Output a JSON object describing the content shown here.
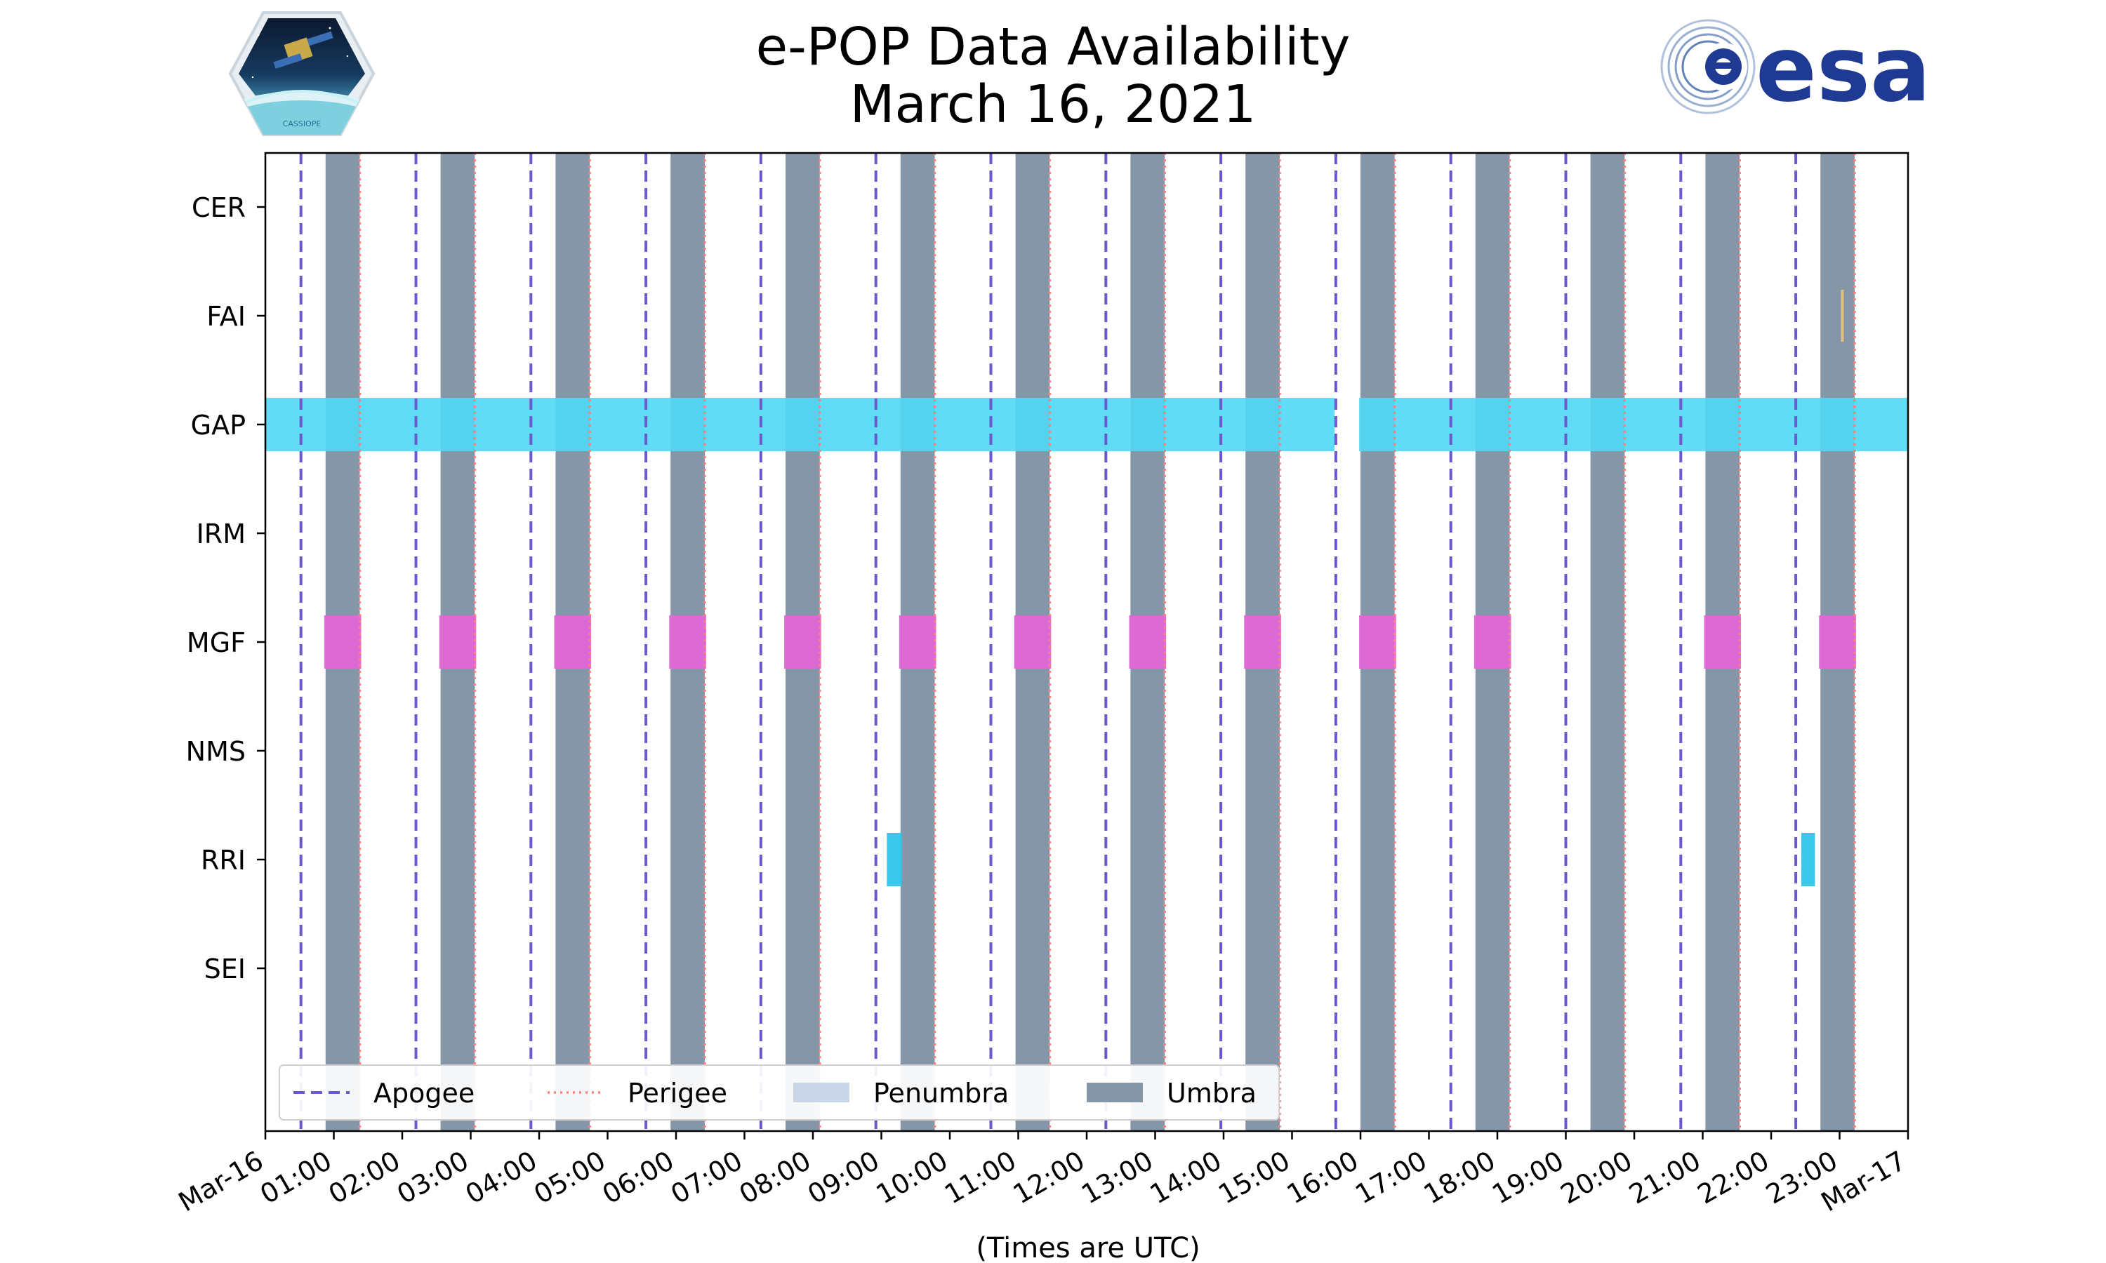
{
  "chart_data": {
    "type": "timeline",
    "title": "e-POP Data Availability",
    "subtitle": "March 16, 2021",
    "xlabel": "(Times are UTC)",
    "ylabel": "",
    "x_range_hours": [
      0,
      24
    ],
    "x_tick_labels": [
      "Mar-16",
      "01:00",
      "02:00",
      "03:00",
      "04:00",
      "05:00",
      "06:00",
      "07:00",
      "08:00",
      "09:00",
      "10:00",
      "11:00",
      "12:00",
      "13:00",
      "14:00",
      "15:00",
      "16:00",
      "17:00",
      "18:00",
      "19:00",
      "20:00",
      "21:00",
      "22:00",
      "23:00",
      "Mar-17"
    ],
    "instruments": [
      "CER",
      "FAI",
      "GAP",
      "IRM",
      "MGF",
      "NMS",
      "RRI",
      "SEI"
    ],
    "colors": {
      "apogee": "#6a5acd",
      "perigee": "#ff7f7f",
      "penumbra": "#c8d6e8",
      "umbra": "#8596a8",
      "GAP": "#4fd8f5",
      "MGF": "#e066d6",
      "RRI": "#2ec5e8",
      "FAI": "#e8c07a"
    },
    "apogee_hours": [
      0.52,
      2.2,
      3.88,
      5.56,
      7.24,
      8.92,
      10.6,
      12.28,
      13.96,
      15.64,
      17.32,
      19.0,
      20.68,
      22.36
    ],
    "perigee_hours": [
      1.38,
      3.06,
      4.74,
      6.42,
      8.1,
      9.78,
      11.46,
      13.14,
      14.82,
      16.5,
      18.18,
      19.86,
      21.54,
      23.22
    ],
    "umbra_intervals": [
      [
        0.88,
        1.38
      ],
      [
        2.56,
        3.06
      ],
      [
        4.24,
        4.74
      ],
      [
        5.92,
        6.42
      ],
      [
        7.6,
        8.1
      ],
      [
        9.28,
        9.78
      ],
      [
        10.96,
        11.46
      ],
      [
        12.64,
        13.14
      ],
      [
        14.32,
        14.82
      ],
      [
        16.0,
        16.5
      ],
      [
        17.68,
        18.18
      ],
      [
        19.36,
        19.86
      ],
      [
        21.04,
        21.54
      ],
      [
        22.72,
        23.22
      ]
    ],
    "availability": {
      "CER": [],
      "FAI": [
        [
          23.02,
          23.07
        ]
      ],
      "GAP": [
        [
          0.0,
          15.62
        ],
        [
          15.98,
          24.0
        ]
      ],
      "IRM": [],
      "MGF": [
        [
          0.86,
          1.4
        ],
        [
          2.54,
          3.08
        ],
        [
          4.22,
          4.76
        ],
        [
          5.9,
          6.44
        ],
        [
          7.58,
          8.12
        ],
        [
          9.26,
          9.8
        ],
        [
          10.94,
          11.48
        ],
        [
          12.62,
          13.16
        ],
        [
          14.3,
          14.84
        ],
        [
          15.98,
          16.52
        ],
        [
          17.66,
          18.2
        ],
        [
          21.02,
          21.56
        ],
        [
          22.7,
          23.24
        ]
      ],
      "NMS": [],
      "RRI": [
        [
          9.08,
          9.3
        ],
        [
          22.44,
          22.64
        ]
      ],
      "SEI": []
    },
    "legend": {
      "position": "bottom-left",
      "entries": [
        "Apogee",
        "Perigee",
        "Penumbra",
        "Umbra"
      ]
    }
  },
  "logos": {
    "left": {
      "name": "CASSIOPE",
      "text": "CASSIOPE"
    },
    "right": {
      "name": "esa",
      "text": "esa"
    }
  }
}
